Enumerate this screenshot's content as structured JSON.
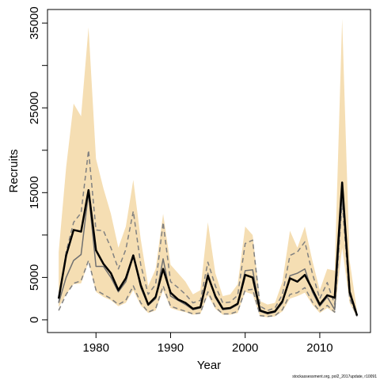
{
  "chart_data": {
    "type": "line",
    "xlabel": "Year",
    "ylabel": "Recruits",
    "footer": "stockassessment.org, pol2_2017update, r10091",
    "x": [
      1975,
      1976,
      1977,
      1978,
      1979,
      1980,
      1981,
      1982,
      1983,
      1984,
      1985,
      1986,
      1987,
      1988,
      1989,
      1990,
      1991,
      1992,
      1993,
      1994,
      1995,
      1996,
      1997,
      1998,
      1999,
      2000,
      2001,
      2002,
      2003,
      2004,
      2005,
      2006,
      2007,
      2008,
      2009,
      2010,
      2011,
      2012,
      2013,
      2014,
      2015
    ],
    "band": {
      "color": "#f5deb3",
      "lower": [
        1500,
        3000,
        4200,
        4300,
        6800,
        3300,
        2700,
        2300,
        1600,
        2000,
        3500,
        1700,
        800,
        1100,
        3500,
        1400,
        1100,
        900,
        600,
        700,
        2900,
        1300,
        600,
        600,
        800,
        3300,
        3000,
        400,
        300,
        400,
        1000,
        2500,
        2800,
        3200,
        1800,
        800,
        1400,
        800,
        8500,
        2000,
        300
      ],
      "upper": [
        8000,
        18000,
        25500,
        24000,
        34500,
        19000,
        15500,
        12500,
        8500,
        11000,
        16500,
        9500,
        4000,
        6000,
        12500,
        6500,
        5500,
        4500,
        3000,
        3500,
        11500,
        5500,
        2800,
        3000,
        4200,
        11000,
        10000,
        2200,
        1800,
        2000,
        4500,
        10500,
        8500,
        11000,
        7000,
        3500,
        6000,
        5800,
        35500,
        7000,
        1000
      ]
    },
    "series": [
      {
        "color": "#808080",
        "dash": true,
        "width": 1.5,
        "values": [
          2000,
          8000,
          11500,
          12600,
          20000,
          10600,
          10500,
          8500,
          6000,
          8300,
          12800,
          6500,
          3000,
          4200,
          11500,
          4500,
          3800,
          3000,
          2000,
          2300,
          6800,
          4000,
          2000,
          2100,
          2900,
          9000,
          9400,
          1600,
          1100,
          1400,
          3000,
          7600,
          8000,
          9200,
          5500,
          2500,
          4400,
          1800,
          15500,
          3500,
          600
        ]
      },
      {
        "color": "#808080",
        "dash": true,
        "width": 1.5,
        "values": [
          1100,
          3000,
          4300,
          4600,
          7000,
          3500,
          3000,
          2500,
          1800,
          2300,
          4000,
          2000,
          900,
          1300,
          4000,
          1600,
          1300,
          1000,
          700,
          800,
          3300,
          1500,
          700,
          700,
          1000,
          3500,
          3600,
          500,
          400,
          500,
          1200,
          3000,
          3200,
          3800,
          2100,
          1000,
          1700,
          900,
          14000,
          2500,
          400
        ]
      },
      {
        "color": "#707070",
        "dash": false,
        "width": 1.5,
        "values": [
          2000,
          5000,
          7000,
          7700,
          15000,
          6300,
          6300,
          5000,
          3300,
          4500,
          7600,
          3800,
          1700,
          2500,
          7200,
          2800,
          2300,
          1800,
          1200,
          1400,
          5500,
          2600,
          1200,
          1300,
          1800,
          5800,
          5900,
          1000,
          700,
          900,
          2000,
          5200,
          5500,
          6000,
          3300,
          1600,
          2700,
          1200,
          15000,
          3000,
          500
        ]
      },
      {
        "color": "#000000",
        "dash": false,
        "width": 2.5,
        "values": [
          2500,
          7600,
          10600,
          10400,
          15300,
          8200,
          6600,
          5500,
          3500,
          4900,
          7600,
          4100,
          1800,
          2700,
          6000,
          3200,
          2400,
          2000,
          1300,
          1500,
          5200,
          2800,
          1300,
          1400,
          1900,
          5300,
          5000,
          1100,
          800,
          1000,
          2200,
          4900,
          4500,
          5300,
          3600,
          1800,
          2900,
          2600,
          16200,
          3300,
          500
        ]
      }
    ],
    "xlim": [
      1973.5,
      2016.8
    ],
    "ylim": [
      -1500,
      36600
    ],
    "xticks": [
      1980,
      1990,
      2000,
      2010
    ],
    "yticks": [
      0,
      5000,
      15000,
      25000,
      35000
    ],
    "yminor_ticks": [
      10000,
      20000,
      30000
    ]
  }
}
